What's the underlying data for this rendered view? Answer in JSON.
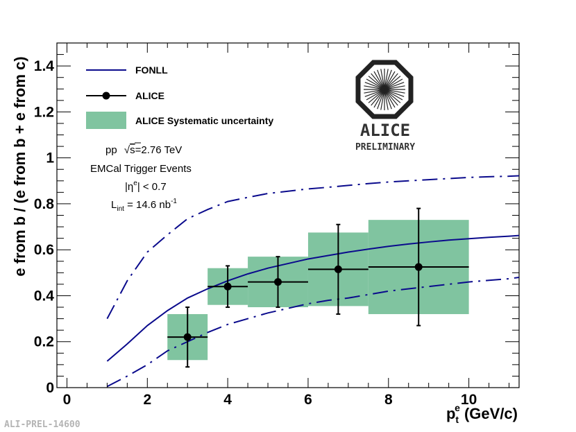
{
  "chart_data": {
    "type": "scatter",
    "title": "",
    "xlabel": "p",
    "xlabel_sub": "t",
    "xlabel_sup": "e",
    "xlabel_unit": " (GeV/c)",
    "ylabel": "e from b / (e from b + e from c)",
    "xlim": [
      -0.25,
      11.25
    ],
    "ylim": [
      0,
      1.5
    ],
    "xticks": [
      0,
      2,
      4,
      6,
      8,
      10
    ],
    "xtick_labels": [
      "0",
      "2",
      "4",
      "6",
      "8",
      "10"
    ],
    "yticks": [
      0,
      0.2,
      0.4,
      0.6,
      0.8,
      1,
      1.2,
      1.4
    ],
    "ytick_labels": [
      "0",
      "0.2",
      "0.4",
      "0.6",
      "0.8",
      "1",
      "1.2",
      "1.4"
    ],
    "grid": false,
    "legend": {
      "placement": "top-left",
      "entries": [
        {
          "label": "FONLL",
          "style": "line"
        },
        {
          "label": "ALICE",
          "style": "marker"
        },
        {
          "label": "ALICE Systematic uncertainty",
          "style": "box"
        }
      ]
    },
    "series": [
      {
        "name": "ALICE",
        "x": [
          3.0,
          4.0,
          5.25,
          6.75,
          8.75
        ],
        "y": [
          0.22,
          0.44,
          0.46,
          0.515,
          0.525
        ],
        "x_err": [
          0.5,
          0.5,
          0.75,
          0.75,
          1.25
        ],
        "y_err_low": [
          0.13,
          0.09,
          0.11,
          0.195,
          0.255
        ],
        "y_err_high": [
          0.13,
          0.09,
          0.11,
          0.195,
          0.255
        ]
      },
      {
        "name": "ALICE Systematic uncertainty",
        "x_low": [
          2.5,
          3.5,
          4.5,
          6.0,
          7.5
        ],
        "x_high": [
          3.5,
          4.5,
          6.0,
          7.5,
          10.0
        ],
        "y_low": [
          0.12,
          0.36,
          0.35,
          0.355,
          0.32
        ],
        "y_high": [
          0.32,
          0.52,
          0.57,
          0.675,
          0.73
        ]
      },
      {
        "name": "FONLL",
        "x": [
          1,
          1.5,
          2,
          2.5,
          3,
          3.5,
          4,
          4.5,
          5,
          5.5,
          6,
          6.5,
          7,
          7.5,
          8,
          8.5,
          9,
          9.5,
          10,
          10.5,
          11,
          11.25
        ],
        "y": [
          0.115,
          0.19,
          0.27,
          0.335,
          0.39,
          0.43,
          0.465,
          0.495,
          0.52,
          0.54,
          0.56,
          0.575,
          0.59,
          0.603,
          0.615,
          0.625,
          0.634,
          0.642,
          0.648,
          0.654,
          0.659,
          0.662
        ]
      },
      {
        "name": "FONLL upper",
        "x": [
          1,
          1.5,
          2,
          2.5,
          3,
          3.5,
          4,
          4.5,
          5,
          5.5,
          6,
          6.5,
          7,
          7.5,
          8,
          8.5,
          9,
          9.5,
          10,
          10.5,
          11,
          11.25
        ],
        "y": [
          0.3,
          0.465,
          0.59,
          0.665,
          0.735,
          0.775,
          0.81,
          0.828,
          0.845,
          0.855,
          0.865,
          0.872,
          0.88,
          0.888,
          0.895,
          0.9,
          0.905,
          0.91,
          0.915,
          0.918,
          0.92,
          0.922
        ]
      },
      {
        "name": "FONLL lower",
        "x": [
          1,
          1.5,
          2,
          2.5,
          3,
          3.5,
          4,
          4.5,
          5,
          5.5,
          6,
          6.5,
          7,
          7.5,
          8,
          8.5,
          9,
          9.5,
          10,
          10.5,
          11,
          11.25
        ],
        "y": [
          0.005,
          0.05,
          0.1,
          0.16,
          0.2,
          0.24,
          0.275,
          0.3,
          0.325,
          0.345,
          0.365,
          0.38,
          0.39,
          0.405,
          0.42,
          0.43,
          0.44,
          0.45,
          0.46,
          0.467,
          0.474,
          0.48
        ]
      }
    ],
    "annotations": {
      "line1_prefix": "pp",
      "sqrt_symbol": "√",
      "sqrt_arg": "s",
      "line1_value": "=2.76 TeV",
      "line2": "EMCal Trigger Events",
      "line3": "|η",
      "line3_sup": "e",
      "line3_suffix": "| < 0.7",
      "line4_prefix": "L",
      "line4_sub": "int",
      "line4_value": " = 14.6 nb",
      "line4_sup": "-1"
    },
    "logo": {
      "name": "ALICE",
      "subtitle": "PRELIMINARY"
    },
    "watermark": "ALI-PREL-14600"
  },
  "colors": {
    "fonll": "#0a0a8c",
    "points": "#000000",
    "systematic": "#80c4a0",
    "watermark": "#b4b4b4"
  }
}
